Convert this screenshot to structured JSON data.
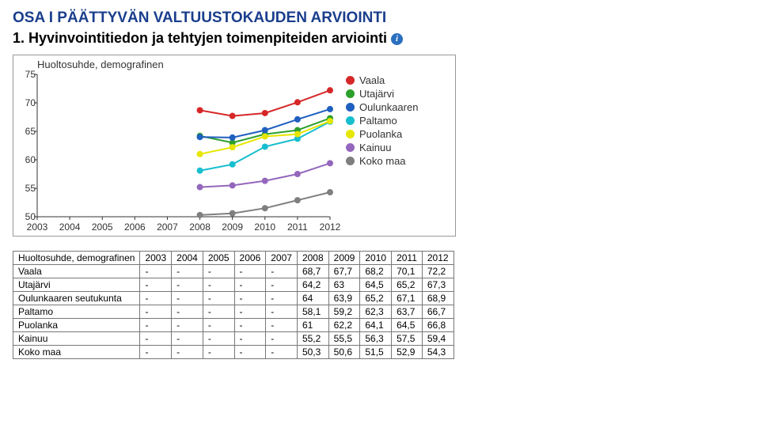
{
  "headings": {
    "h1": "OSA I PÄÄTTYVÄN VALTUUSTOKAUDEN ARVIOINTI",
    "h2": "1. Hyvinvointitiedon ja tehtyjen toimenpiteiden arviointi"
  },
  "chart": {
    "title": "Huoltosuhde, demografinen",
    "ylim": [
      50,
      75
    ],
    "yticks": [
      50,
      55,
      60,
      65,
      70,
      75
    ],
    "years": [
      2003,
      2004,
      2005,
      2006,
      2007,
      2008,
      2009,
      2010,
      2011,
      2012
    ],
    "plot_bg": "#ffffff",
    "axis_color": "#333333",
    "marker_radius": 4,
    "line_width": 2,
    "series": [
      {
        "name": "Vaala",
        "color": "#d62728",
        "values": [
          null,
          null,
          null,
          null,
          null,
          68.7,
          67.7,
          68.2,
          70.1,
          72.2
        ]
      },
      {
        "name": "Utajärvi",
        "color": "#2ca02c",
        "values": [
          null,
          null,
          null,
          null,
          null,
          64.2,
          63.0,
          64.5,
          65.2,
          67.3
        ]
      },
      {
        "name": "Oulunkaaren",
        "color": "#1f5fbf",
        "values": [
          null,
          null,
          null,
          null,
          null,
          64.0,
          63.9,
          65.2,
          67.1,
          68.9
        ]
      },
      {
        "name": "Paltamo",
        "color": "#17becf",
        "values": [
          null,
          null,
          null,
          null,
          null,
          58.1,
          59.2,
          62.3,
          63.7,
          66.7
        ]
      },
      {
        "name": "Puolanka",
        "color": "#e6e600",
        "values": [
          null,
          null,
          null,
          null,
          null,
          61.0,
          62.2,
          64.1,
          64.5,
          66.8
        ]
      },
      {
        "name": "Kainuu",
        "color": "#9467bd",
        "values": [
          null,
          null,
          null,
          null,
          null,
          55.2,
          55.5,
          56.3,
          57.5,
          59.4
        ]
      },
      {
        "name": "Koko maa",
        "color": "#7f7f7f",
        "values": [
          null,
          null,
          null,
          null,
          null,
          50.3,
          50.6,
          51.5,
          52.9,
          54.3
        ]
      }
    ]
  },
  "table": {
    "header_first": "Huoltosuhde, demografinen",
    "years": [
      "2003",
      "2004",
      "2005",
      "2006",
      "2007",
      "2008",
      "2009",
      "2010",
      "2011",
      "2012"
    ],
    "rows": [
      {
        "label": "Vaala",
        "cells": [
          "-",
          "-",
          "-",
          "-",
          "-",
          "68,7",
          "67,7",
          "68,2",
          "70,1",
          "72,2"
        ]
      },
      {
        "label": "Utajärvi",
        "cells": [
          "-",
          "-",
          "-",
          "-",
          "-",
          "64,2",
          "63",
          "64,5",
          "65,2",
          "67,3"
        ]
      },
      {
        "label": "Oulunkaaren seutukunta",
        "cells": [
          "-",
          "-",
          "-",
          "-",
          "-",
          "64",
          "63,9",
          "65,2",
          "67,1",
          "68,9"
        ]
      },
      {
        "label": "Paltamo",
        "cells": [
          "-",
          "-",
          "-",
          "-",
          "-",
          "58,1",
          "59,2",
          "62,3",
          "63,7",
          "66,7"
        ]
      },
      {
        "label": "Puolanka",
        "cells": [
          "-",
          "-",
          "-",
          "-",
          "-",
          "61",
          "62,2",
          "64,1",
          "64,5",
          "66,8"
        ]
      },
      {
        "label": "Kainuu",
        "cells": [
          "-",
          "-",
          "-",
          "-",
          "-",
          "55,2",
          "55,5",
          "56,3",
          "57,5",
          "59,4"
        ]
      },
      {
        "label": "Koko maa",
        "cells": [
          "-",
          "-",
          "-",
          "-",
          "-",
          "50,3",
          "50,6",
          "51,5",
          "52,9",
          "54,3"
        ]
      }
    ]
  }
}
